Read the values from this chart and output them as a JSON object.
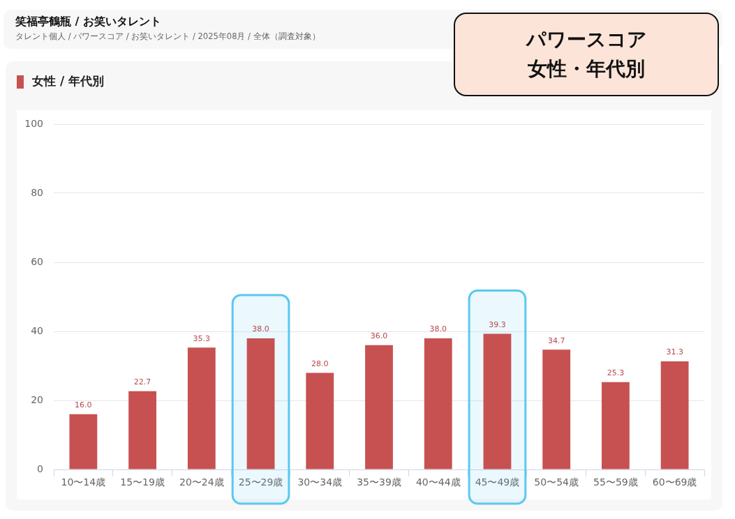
{
  "chart_data": {
    "type": "bar",
    "title": "笑福亭鶴瓶 / お笑いタレント",
    "subtitle": "タレント個人 / パワースコア / お笑いタレント / 2025年08月 / 全体（調査対象）",
    "annotations": [
      "女性 / 年代別",
      "パワースコア",
      "女性・年代別"
    ],
    "categories": [
      "10〜14歳",
      "15〜19歳",
      "20〜24歳",
      "25〜29歳",
      "30〜34歳",
      "35〜39歳",
      "40〜44歳",
      "45〜49歳",
      "50〜54歳",
      "55〜59歳",
      "60〜69歳"
    ],
    "values": [
      16,
      22.7,
      35.3,
      38,
      28,
      36,
      38,
      39.3,
      34.7,
      25.3,
      31.3
    ],
    "value_labels": [
      "16.0",
      "22.7",
      "35.3",
      "38.0",
      "28.0",
      "36.0",
      "38.0",
      "39.3",
      "34.7",
      "25.3",
      "31.3"
    ],
    "color": "#c75151",
    "ylim": [
      0,
      100
    ],
    "yticks": [
      0,
      20,
      40,
      60,
      80,
      100
    ],
    "grid": "y",
    "bands": [
      {
        "axis": "x",
        "from": "25〜29歳",
        "to": "25〜29歳",
        "color": "#5bc8f0"
      },
      {
        "axis": "x",
        "from": "45〜49歳",
        "to": "45〜49歳",
        "color": "#5bc8f0"
      }
    ]
  }
}
